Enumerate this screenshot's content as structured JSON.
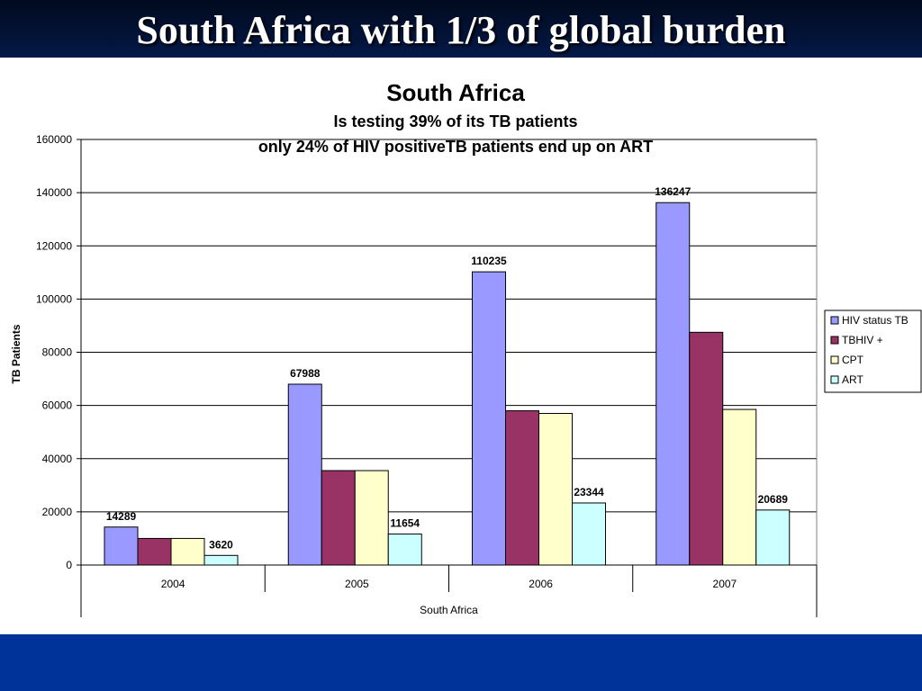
{
  "slide": {
    "title": "South Africa with 1/3 of global burden",
    "colors": {
      "header": "#03143a",
      "footer": "#003399",
      "title_text": "#ffffff"
    }
  },
  "chart_data": {
    "type": "bar",
    "title": "South Africa",
    "subtitle_lines": [
      "Is testing 39% of its TB patients",
      "only 24% of HIV positiveTB patients end up on ART"
    ],
    "xlabel": "South Africa",
    "ylabel": "TB Patients",
    "categories": [
      "2004",
      "2005",
      "2006",
      "2007"
    ],
    "ylim": [
      0,
      160000
    ],
    "ytick_step": 20000,
    "grid": true,
    "legend_position": "right",
    "series": [
      {
        "name": "HIV status TB",
        "color": "#9999ff",
        "values": [
          14289,
          67988,
          110235,
          136247
        ],
        "labels": [
          "14289",
          "67988",
          "110235",
          "136247"
        ]
      },
      {
        "name": "TBHIV +",
        "color": "#993366",
        "values": [
          10000,
          35500,
          58000,
          87500
        ],
        "labels": []
      },
      {
        "name": "CPT",
        "color": "#ffffcc",
        "values": [
          10000,
          35500,
          57000,
          58500
        ],
        "labels": []
      },
      {
        "name": "ART",
        "color": "#ccffff",
        "values": [
          3620,
          11654,
          23344,
          20689
        ],
        "labels": [
          "3620",
          "11654",
          "23344",
          "20689"
        ]
      }
    ]
  }
}
